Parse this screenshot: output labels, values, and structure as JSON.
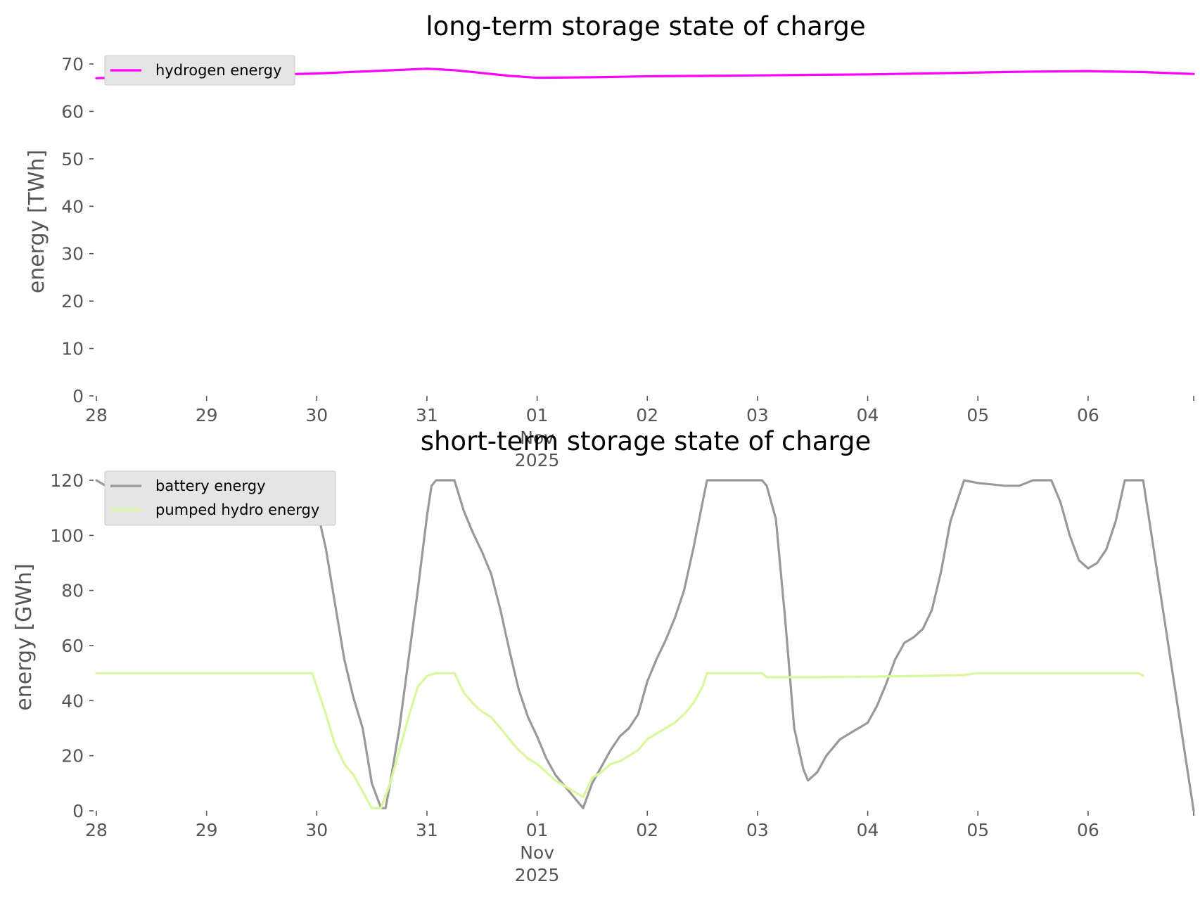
{
  "chart_data": [
    {
      "type": "line",
      "title": "long-term storage state of charge",
      "xlabel": "",
      "ylabel": "energy [TWh]",
      "xlim": [
        "2025-10-28T00:00",
        "2025-11-06T23:00"
      ],
      "ylim": [
        0,
        70
      ],
      "yticks": [
        0,
        10,
        20,
        30,
        40,
        50,
        60,
        70
      ],
      "xtick_labels": [
        {
          "date": "2025-10-28",
          "label": "28"
        },
        {
          "date": "2025-10-29",
          "label": "29"
        },
        {
          "date": "2025-10-30",
          "label": "30"
        },
        {
          "date": "2025-10-31",
          "label": "31"
        },
        {
          "date": "2025-11-01",
          "label": "01\nNov\n2025"
        },
        {
          "date": "2025-11-02",
          "label": "02"
        },
        {
          "date": "2025-11-03",
          "label": "03"
        },
        {
          "date": "2025-11-04",
          "label": "04"
        },
        {
          "date": "2025-11-05",
          "label": "05"
        },
        {
          "date": "2025-11-06",
          "label": "06"
        },
        {
          "date": "2025-11-06T23:00",
          "label": ""
        }
      ],
      "grid": false,
      "legend": "top-left",
      "series": [
        {
          "name": "hydrogen energy",
          "color": "#ff00ff",
          "points": [
            [
              "2025-10-28T00:00",
              67.0
            ],
            [
              "2025-10-28T12:00",
              67.3
            ],
            [
              "2025-10-29T00:00",
              67.5
            ],
            [
              "2025-10-29T12:00",
              67.7
            ],
            [
              "2025-10-30T00:00",
              68.0
            ],
            [
              "2025-10-30T12:00",
              68.5
            ],
            [
              "2025-10-31T00:00",
              69.0
            ],
            [
              "2025-10-31T06:00",
              68.7
            ],
            [
              "2025-10-31T12:00",
              68.1
            ],
            [
              "2025-10-31T18:00",
              67.5
            ],
            [
              "2025-11-01T00:00",
              67.1
            ],
            [
              "2025-11-01T12:00",
              67.2
            ],
            [
              "2025-11-02T00:00",
              67.4
            ],
            [
              "2025-11-02T12:00",
              67.5
            ],
            [
              "2025-11-03T00:00",
              67.6
            ],
            [
              "2025-11-03T12:00",
              67.7
            ],
            [
              "2025-11-04T00:00",
              67.8
            ],
            [
              "2025-11-04T12:00",
              68.0
            ],
            [
              "2025-11-05T00:00",
              68.2
            ],
            [
              "2025-11-05T12:00",
              68.4
            ],
            [
              "2025-11-06T00:00",
              68.5
            ],
            [
              "2025-11-06T12:00",
              68.3
            ],
            [
              "2025-11-06T23:00",
              67.9
            ]
          ]
        }
      ]
    },
    {
      "type": "line",
      "title": "short-term storage state of charge",
      "xlabel": "",
      "ylabel": "energy [GWh]",
      "xlim": [
        "2025-10-28T00:00",
        "2025-11-06T23:00"
      ],
      "ylim": [
        0,
        120
      ],
      "yticks": [
        0,
        20,
        40,
        60,
        80,
        100,
        120
      ],
      "xtick_labels": [
        {
          "date": "2025-10-28",
          "label": "28"
        },
        {
          "date": "2025-10-29",
          "label": "29"
        },
        {
          "date": "2025-10-30",
          "label": "30"
        },
        {
          "date": "2025-10-31",
          "label": "31"
        },
        {
          "date": "2025-11-01",
          "label": "01\nNov\n2025"
        },
        {
          "date": "2025-11-02",
          "label": "02"
        },
        {
          "date": "2025-11-03",
          "label": "03"
        },
        {
          "date": "2025-11-04",
          "label": "04"
        },
        {
          "date": "2025-11-05",
          "label": "05"
        },
        {
          "date": "2025-11-06",
          "label": "06"
        },
        {
          "date": "2025-11-06T23:00",
          "label": ""
        }
      ],
      "grid": false,
      "legend": "top-left",
      "series": [
        {
          "name": "battery energy",
          "color": "#999999",
          "points": [
            [
              "2025-10-28T00:00",
              120
            ],
            [
              "2025-10-28T02:00",
              118
            ],
            [
              "2025-10-28T12:00",
              116
            ],
            [
              "2025-10-29T00:00",
              116
            ],
            [
              "2025-10-29T06:00",
              118
            ],
            [
              "2025-10-29T18:00",
              120
            ],
            [
              "2025-10-29T20:00",
              119
            ],
            [
              "2025-10-29T22:00",
              116
            ],
            [
              "2025-10-30T00:00",
              110
            ],
            [
              "2025-10-30T02:00",
              95
            ],
            [
              "2025-10-30T04:00",
              75
            ],
            [
              "2025-10-30T06:00",
              55
            ],
            [
              "2025-10-30T08:00",
              41
            ],
            [
              "2025-10-30T10:00",
              30
            ],
            [
              "2025-10-30T12:00",
              10
            ],
            [
              "2025-10-30T14:00",
              1
            ],
            [
              "2025-10-30T15:00",
              1
            ],
            [
              "2025-10-30T16:00",
              10
            ],
            [
              "2025-10-30T18:00",
              30
            ],
            [
              "2025-10-30T20:00",
              55
            ],
            [
              "2025-10-30T22:00",
              80
            ],
            [
              "2025-10-31T00:00",
              107
            ],
            [
              "2025-10-31T01:00",
              118
            ],
            [
              "2025-10-31T02:00",
              120
            ],
            [
              "2025-10-31T06:00",
              120
            ],
            [
              "2025-10-31T08:00",
              109
            ],
            [
              "2025-10-31T10:00",
              101
            ],
            [
              "2025-10-31T12:00",
              94
            ],
            [
              "2025-10-31T14:00",
              86
            ],
            [
              "2025-10-31T16:00",
              73
            ],
            [
              "2025-10-31T18:00",
              58
            ],
            [
              "2025-10-31T20:00",
              44
            ],
            [
              "2025-10-31T22:00",
              34
            ],
            [
              "2025-11-01T00:00",
              27
            ],
            [
              "2025-11-01T02:00",
              19
            ],
            [
              "2025-11-01T04:00",
              13
            ],
            [
              "2025-11-01T06:00",
              9
            ],
            [
              "2025-11-01T08:00",
              5
            ],
            [
              "2025-11-01T10:00",
              1
            ],
            [
              "2025-11-01T12:00",
              10
            ],
            [
              "2025-11-01T14:00",
              16
            ],
            [
              "2025-11-01T16:00",
              22
            ],
            [
              "2025-11-01T18:00",
              27
            ],
            [
              "2025-11-01T20:00",
              30
            ],
            [
              "2025-11-01T22:00",
              35
            ],
            [
              "2025-11-02T00:00",
              47
            ],
            [
              "2025-11-02T02:00",
              55
            ],
            [
              "2025-11-02T04:00",
              62
            ],
            [
              "2025-11-02T06:00",
              70
            ],
            [
              "2025-11-02T08:00",
              80
            ],
            [
              "2025-11-02T10:00",
              95
            ],
            [
              "2025-11-02T13:00",
              120
            ],
            [
              "2025-11-03T01:00",
              120
            ],
            [
              "2025-11-03T02:00",
              118
            ],
            [
              "2025-11-03T04:00",
              106
            ],
            [
              "2025-11-03T06:00",
              70
            ],
            [
              "2025-11-03T08:00",
              30
            ],
            [
              "2025-11-03T10:00",
              15
            ],
            [
              "2025-11-03T11:00",
              11
            ],
            [
              "2025-11-03T13:00",
              14
            ],
            [
              "2025-11-03T15:00",
              20
            ],
            [
              "2025-11-03T18:00",
              26
            ],
            [
              "2025-11-03T21:00",
              29
            ],
            [
              "2025-11-04T00:00",
              32
            ],
            [
              "2025-11-04T02:00",
              38
            ],
            [
              "2025-11-04T04:00",
              46
            ],
            [
              "2025-11-04T06:00",
              55
            ],
            [
              "2025-11-04T08:00",
              61
            ],
            [
              "2025-11-04T10:00",
              63
            ],
            [
              "2025-11-04T12:00",
              66
            ],
            [
              "2025-11-04T14:00",
              73
            ],
            [
              "2025-11-04T16:00",
              87
            ],
            [
              "2025-11-04T18:00",
              105
            ],
            [
              "2025-11-04T21:00",
              120
            ],
            [
              "2025-11-05T00:00",
              119
            ],
            [
              "2025-11-05T06:00",
              118
            ],
            [
              "2025-11-05T09:00",
              118
            ],
            [
              "2025-11-05T12:00",
              120
            ],
            [
              "2025-11-05T16:00",
              120
            ],
            [
              "2025-11-05T18:00",
              112
            ],
            [
              "2025-11-05T20:00",
              100
            ],
            [
              "2025-11-05T22:00",
              91
            ],
            [
              "2025-11-06T00:00",
              88
            ],
            [
              "2025-11-06T02:00",
              90
            ],
            [
              "2025-11-06T04:00",
              95
            ],
            [
              "2025-11-06T06:00",
              105
            ],
            [
              "2025-11-06T08:00",
              120
            ],
            [
              "2025-11-06T12:00",
              120
            ],
            [
              "2025-11-06T23:00",
              0
            ]
          ]
        },
        {
          "name": "pumped hydro energy",
          "color": "#d9f79c",
          "points": [
            [
              "2025-10-28T00:00",
              50
            ],
            [
              "2025-10-29T23:00",
              50
            ],
            [
              "2025-10-30T02:00",
              35
            ],
            [
              "2025-10-30T04:00",
              24
            ],
            [
              "2025-10-30T06:00",
              17
            ],
            [
              "2025-10-30T08:00",
              13
            ],
            [
              "2025-10-30T10:00",
              7
            ],
            [
              "2025-10-30T12:00",
              1
            ],
            [
              "2025-10-30T14:00",
              1
            ],
            [
              "2025-10-30T16:00",
              10
            ],
            [
              "2025-10-30T18:00",
              22
            ],
            [
              "2025-10-30T20:00",
              34
            ],
            [
              "2025-10-30T22:00",
              45
            ],
            [
              "2025-10-31T00:00",
              49
            ],
            [
              "2025-10-31T02:00",
              50
            ],
            [
              "2025-10-31T06:00",
              50
            ],
            [
              "2025-10-31T08:00",
              43
            ],
            [
              "2025-10-31T10:00",
              39
            ],
            [
              "2025-10-31T12:00",
              36
            ],
            [
              "2025-10-31T14:00",
              34
            ],
            [
              "2025-10-31T16:00",
              30
            ],
            [
              "2025-10-31T18:00",
              26
            ],
            [
              "2025-10-31T20:00",
              22
            ],
            [
              "2025-10-31T22:00",
              19
            ],
            [
              "2025-11-01T00:00",
              17
            ],
            [
              "2025-11-01T02:00",
              14
            ],
            [
              "2025-11-01T04:00",
              11
            ],
            [
              "2025-11-01T06:00",
              9
            ],
            [
              "2025-11-01T08:00",
              7
            ],
            [
              "2025-11-01T10:00",
              5
            ],
            [
              "2025-11-01T12:00",
              12
            ],
            [
              "2025-11-01T14:00",
              14
            ],
            [
              "2025-11-01T16:00",
              17
            ],
            [
              "2025-11-01T18:00",
              18
            ],
            [
              "2025-11-01T20:00",
              20
            ],
            [
              "2025-11-01T22:00",
              22
            ],
            [
              "2025-11-02T00:00",
              26
            ],
            [
              "2025-11-02T02:00",
              28
            ],
            [
              "2025-11-02T04:00",
              30
            ],
            [
              "2025-11-02T06:00",
              32
            ],
            [
              "2025-11-02T08:00",
              35
            ],
            [
              "2025-11-02T10:00",
              39
            ],
            [
              "2025-11-02T12:00",
              45
            ],
            [
              "2025-11-02T13:00",
              50
            ],
            [
              "2025-11-03T01:00",
              50
            ],
            [
              "2025-11-03T02:00",
              48.5
            ],
            [
              "2025-11-03T12:00",
              48.5
            ],
            [
              "2025-11-04T00:00",
              48.7
            ],
            [
              "2025-11-04T12:00",
              49
            ],
            [
              "2025-11-04T21:00",
              49.3
            ],
            [
              "2025-11-05T00:00",
              50
            ],
            [
              "2025-11-06T11:00",
              50
            ],
            [
              "2025-11-06T12:00",
              49
            ]
          ]
        }
      ]
    }
  ]
}
